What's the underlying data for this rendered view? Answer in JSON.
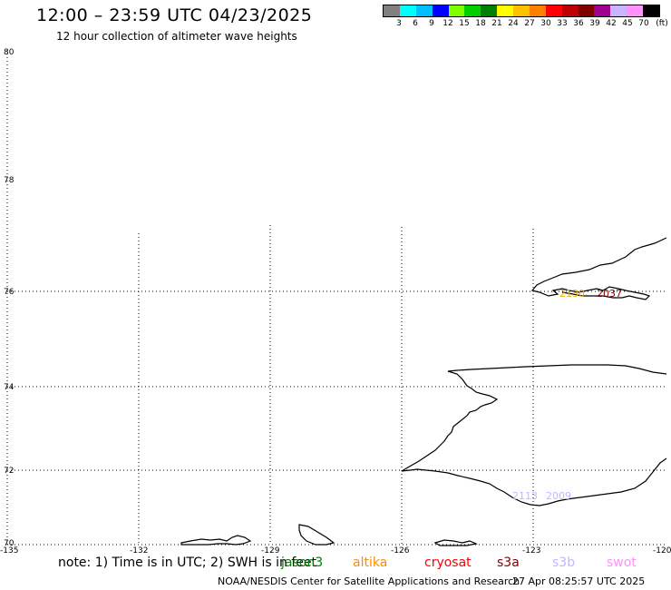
{
  "header": {
    "title": "12:00 – 23:59 UTC 04/23/2025",
    "subtitle": "12 hour collection of altimeter wave heights"
  },
  "colorbar": {
    "colors": [
      "#808080",
      "#00ffff",
      "#00bfff",
      "#0000ff",
      "#80ff00",
      "#00d000",
      "#008000",
      "#ffff00",
      "#ffc000",
      "#ff8000",
      "#ff0000",
      "#c00000",
      "#800000",
      "#a00090",
      "#c8b4ff",
      "#ff90ff",
      "#000000"
    ],
    "labels": [
      "3",
      "6",
      "9",
      "12",
      "15",
      "18",
      "21",
      "24",
      "27",
      "30",
      "33",
      "36",
      "39",
      "42",
      "45",
      "70"
    ],
    "unit": "(ft)"
  },
  "map": {
    "lat_labels": [
      "80",
      "78",
      "76",
      "74",
      "72",
      "70"
    ],
    "lon_labels": [
      "-135",
      "-132",
      "-129",
      "-126",
      "-123",
      "-120"
    ],
    "tracks": [
      {
        "label": "2130",
        "color": "#f0b000"
      },
      {
        "label": "2037",
        "color": "#800000"
      },
      {
        "label": "2113",
        "color": "#c8b4ff"
      },
      {
        "label": "2009",
        "color": "#c8b4ff"
      }
    ]
  },
  "legend": {
    "note": "note: 1) Time is in UTC; 2) SWH is in feet",
    "satellites": [
      {
        "name": "jason3",
        "color": "#008000"
      },
      {
        "name": "altika",
        "color": "#ff8c00"
      },
      {
        "name": "cryosat",
        "color": "#ff0000"
      },
      {
        "name": "s3a",
        "color": "#800000"
      },
      {
        "name": "s3b",
        "color": "#c8b4ff"
      },
      {
        "name": "swot",
        "color": "#ff90ff"
      }
    ]
  },
  "footer": {
    "credit": "NOAA/NESDIS Center for Satellite Applications and Research",
    "timestamp": "27 Apr 08:25:57 UTC 2025"
  }
}
